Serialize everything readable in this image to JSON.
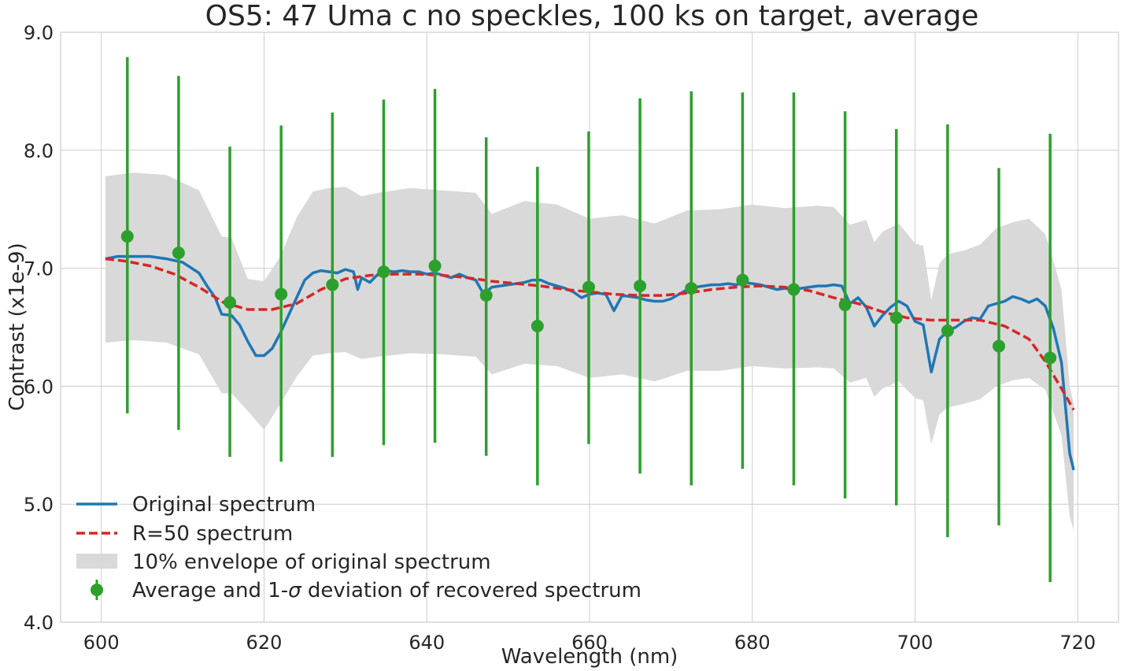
{
  "chart_data": {
    "type": "line",
    "title": "OS5: 47 Uma c no speckles, 100 ks on target, average",
    "xlabel": "Wavelength (nm)",
    "ylabel": "Contrast (x1e-9)",
    "xlim": [
      595,
      725
    ],
    "ylim": [
      4.0,
      9.0
    ],
    "x_ticks": [
      600,
      620,
      640,
      660,
      680,
      700,
      720
    ],
    "y_ticks": [
      4.0,
      5.0,
      6.0,
      7.0,
      8.0,
      9.0
    ],
    "x_tick_labels": [
      "600",
      "620",
      "640",
      "660",
      "680",
      "700",
      "720"
    ],
    "y_tick_labels": [
      "4.0",
      "5.0",
      "6.0",
      "7.0",
      "8.0",
      "9.0"
    ],
    "grid": true,
    "legend_position": "lower-left",
    "legend": [
      {
        "label": "Original spectrum",
        "kind": "line",
        "color": "#1f77b4"
      },
      {
        "label": "R=50 spectrum",
        "kind": "dashed-line",
        "color": "#d62728"
      },
      {
        "label": "10% envelope of original spectrum",
        "kind": "band",
        "color": "#d9d9d9"
      },
      {
        "label_pre": "Average and 1-",
        "label_sigma": "σ",
        "label_post": " deviation of recovered spectrum",
        "kind": "errorbar",
        "color": "#2ca02c"
      }
    ],
    "series": [
      {
        "name": "Original spectrum",
        "color": "#1f77b4",
        "x": [
          600.5,
          602,
          604,
          606,
          608,
          610,
          612,
          613,
          614,
          614.8,
          616,
          617,
          618,
          619,
          620,
          621,
          622,
          623,
          624,
          625,
          626,
          627,
          628,
          629,
          630,
          631,
          631.5,
          632,
          633,
          634,
          635,
          636,
          637,
          638,
          639,
          640,
          641,
          642,
          643,
          644,
          645,
          646,
          647,
          648,
          649,
          650,
          651,
          652,
          653,
          654,
          655,
          656,
          657,
          658,
          659,
          660,
          661,
          662,
          663,
          664,
          665,
          666,
          667,
          668,
          669,
          670,
          671,
          672,
          673,
          674,
          675,
          676,
          677,
          678,
          679,
          680,
          681,
          682,
          683,
          684,
          685,
          686,
          687,
          688,
          689,
          690,
          691,
          692,
          693,
          694,
          695,
          696,
          697,
          698,
          699,
          700,
          701,
          702,
          703,
          704,
          705,
          706,
          707,
          708,
          709,
          710,
          711,
          712,
          713,
          714,
          715,
          716,
          717,
          718,
          719,
          719.5
        ],
        "y": [
          7.08,
          7.1,
          7.1,
          7.1,
          7.08,
          7.05,
          6.96,
          6.85,
          6.75,
          6.61,
          6.6,
          6.52,
          6.38,
          6.26,
          6.26,
          6.32,
          6.45,
          6.6,
          6.75,
          6.9,
          6.96,
          6.98,
          6.97,
          6.96,
          6.99,
          6.97,
          6.82,
          6.92,
          6.88,
          6.95,
          6.98,
          6.97,
          6.98,
          6.97,
          6.97,
          6.95,
          6.96,
          6.94,
          6.92,
          6.95,
          6.92,
          6.9,
          6.78,
          6.84,
          6.85,
          6.86,
          6.87,
          6.88,
          6.9,
          6.9,
          6.87,
          6.85,
          6.83,
          6.8,
          6.75,
          6.78,
          6.79,
          6.78,
          6.64,
          6.77,
          6.76,
          6.75,
          6.73,
          6.72,
          6.72,
          6.74,
          6.78,
          6.82,
          6.84,
          6.85,
          6.86,
          6.86,
          6.87,
          6.86,
          6.88,
          6.87,
          6.86,
          6.84,
          6.82,
          6.83,
          6.82,
          6.83,
          6.84,
          6.85,
          6.85,
          6.86,
          6.85,
          6.7,
          6.75,
          6.67,
          6.51,
          6.6,
          6.67,
          6.72,
          6.68,
          6.55,
          6.52,
          6.12,
          6.4,
          6.47,
          6.5,
          6.55,
          6.58,
          6.57,
          6.68,
          6.7,
          6.72,
          6.76,
          6.74,
          6.71,
          6.74,
          6.68,
          6.49,
          6.2,
          5.43,
          5.29
        ]
      },
      {
        "name": "R=50 spectrum",
        "color": "#d62728",
        "x": [
          600.5,
          603,
          606,
          609,
          612,
          615,
          618,
          621,
          624,
          627,
          630,
          633,
          636,
          639,
          642,
          645,
          648,
          651,
          654,
          657,
          660,
          663,
          666,
          669,
          672,
          675,
          678,
          681,
          684,
          687,
          690,
          693,
          696,
          699,
          702,
          705,
          708,
          711,
          714,
          716,
          718,
          719.5
        ],
        "y": [
          7.08,
          7.06,
          7.02,
          6.95,
          6.84,
          6.71,
          6.65,
          6.65,
          6.7,
          6.82,
          6.91,
          6.94,
          6.95,
          6.95,
          6.94,
          6.92,
          6.89,
          6.87,
          6.85,
          6.82,
          6.8,
          6.78,
          6.77,
          6.77,
          6.79,
          6.82,
          6.84,
          6.85,
          6.84,
          6.81,
          6.75,
          6.7,
          6.63,
          6.58,
          6.56,
          6.56,
          6.56,
          6.51,
          6.4,
          6.21,
          5.98,
          5.8
        ]
      },
      {
        "name": "10% envelope of original spectrum",
        "color": "#d9d9d9",
        "x": [
          600.5,
          604,
          608,
          612,
          614.8,
          616,
          618,
          620,
          622,
          624,
          626,
          628,
          630,
          632,
          634,
          638,
          642,
          646,
          648,
          652,
          656,
          660,
          664,
          668,
          672,
          676,
          680,
          684,
          688,
          690,
          692,
          694,
          695,
          696,
          698,
          700,
          701,
          702,
          703,
          704,
          706,
          708,
          710,
          712,
          714,
          716,
          717,
          718,
          719,
          719.5
        ],
        "upper": [
          7.78,
          7.81,
          7.79,
          7.66,
          7.27,
          7.26,
          6.91,
          6.89,
          7.1,
          7.43,
          7.65,
          7.68,
          7.69,
          7.61,
          7.64,
          7.68,
          7.66,
          7.64,
          7.46,
          7.57,
          7.54,
          7.42,
          7.45,
          7.38,
          7.49,
          7.5,
          7.54,
          7.51,
          7.53,
          7.52,
          7.37,
          7.41,
          7.22,
          7.31,
          7.38,
          7.21,
          7.19,
          6.73,
          7.04,
          7.12,
          7.15,
          7.2,
          7.34,
          7.39,
          7.42,
          7.29,
          7.06,
          6.82,
          6.0,
          5.85
        ],
        "lower": [
          6.37,
          6.39,
          6.37,
          6.27,
          5.94,
          5.94,
          5.79,
          5.63,
          5.85,
          6.08,
          6.26,
          6.28,
          6.29,
          6.23,
          6.25,
          6.28,
          6.27,
          6.25,
          6.1,
          6.19,
          6.17,
          6.07,
          6.1,
          6.04,
          6.13,
          6.13,
          6.17,
          6.15,
          6.16,
          6.15,
          6.03,
          6.07,
          5.91,
          5.98,
          6.04,
          5.9,
          5.88,
          5.51,
          5.76,
          5.82,
          5.85,
          5.89,
          6.0,
          6.05,
          6.07,
          5.97,
          5.78,
          5.58,
          4.9,
          4.78
        ]
      },
      {
        "name": "Average and 1-σ deviation of recovered spectrum",
        "color": "#2ca02c",
        "x": [
          603.2,
          609.5,
          615.8,
          622.1,
          628.4,
          634.7,
          641.0,
          647.3,
          653.6,
          659.9,
          666.2,
          672.5,
          678.8,
          685.1,
          691.4,
          697.7,
          704.0,
          710.3,
          716.6
        ],
        "y": [
          7.27,
          7.13,
          6.71,
          6.78,
          6.86,
          6.97,
          7.02,
          6.77,
          6.51,
          6.84,
          6.85,
          6.83,
          6.9,
          6.82,
          6.69,
          6.58,
          6.47,
          6.34,
          6.24
        ],
        "y_low": [
          5.77,
          5.63,
          5.4,
          5.36,
          5.4,
          5.5,
          5.52,
          5.41,
          5.16,
          5.51,
          5.26,
          5.16,
          5.3,
          5.16,
          5.05,
          4.99,
          4.72,
          4.82,
          4.34
        ],
        "y_high": [
          8.79,
          8.63,
          8.03,
          8.21,
          8.32,
          8.43,
          8.52,
          8.11,
          7.86,
          8.16,
          8.44,
          8.5,
          8.49,
          8.49,
          8.33,
          8.18,
          8.22,
          7.85,
          8.14
        ]
      }
    ]
  }
}
